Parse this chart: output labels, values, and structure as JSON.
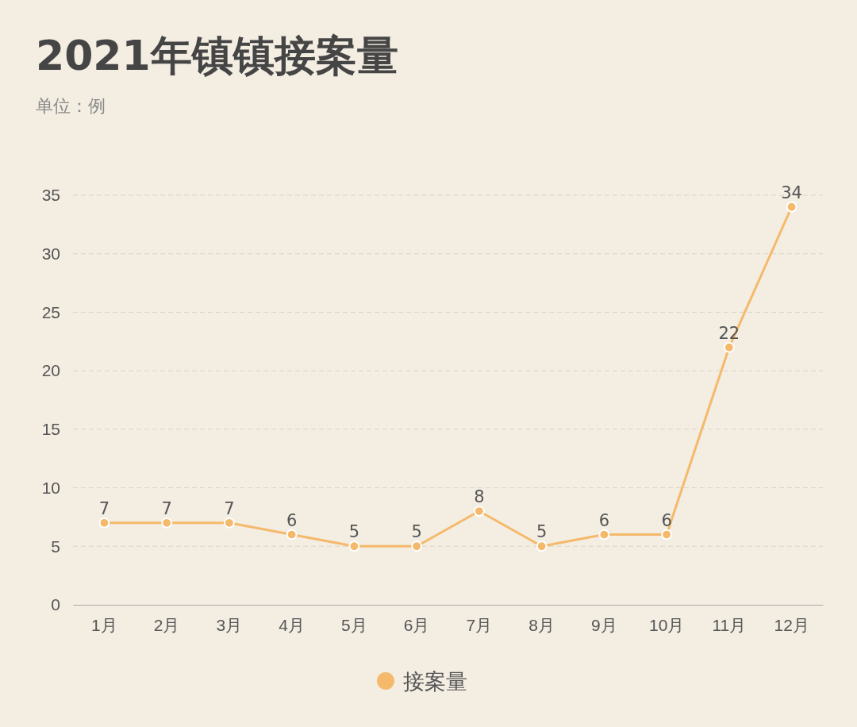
{
  "chart_data": {
    "type": "line",
    "title": "2021年镇镇接案量",
    "subtitle": "单位：例",
    "categories": [
      "1月",
      "2月",
      "3月",
      "4月",
      "5月",
      "6月",
      "7月",
      "8月",
      "9月",
      "10月",
      "11月",
      "12月"
    ],
    "series": [
      {
        "name": "接案量",
        "color": "#f5b96b",
        "values": [
          7,
          7,
          7,
          6,
          5,
          5,
          8,
          5,
          6,
          6,
          22,
          34
        ]
      }
    ],
    "ylim": [
      0,
      35
    ],
    "yticks": [
      0,
      5,
      10,
      15,
      20,
      25,
      30,
      35
    ],
    "grid": "y",
    "legend": "bottom",
    "marker": "circle",
    "line_style": "solid",
    "data_labels": true
  }
}
